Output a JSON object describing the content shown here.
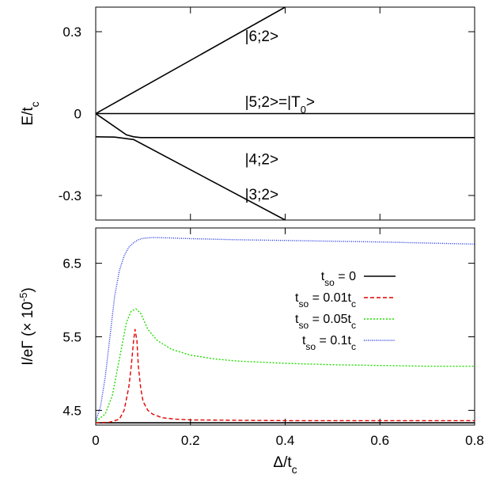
{
  "chart_data": [
    {
      "type": "line",
      "title": "",
      "xlabel": "",
      "ylabel": {
        "main": "E/t",
        "sub": "c"
      },
      "xlim": [
        0,
        0.8
      ],
      "ylim": [
        -0.39,
        0.39
      ],
      "yticks": [
        0.3,
        0,
        -0.3
      ],
      "ytick_labels": [
        "0.3",
        "0",
        "-0.3"
      ],
      "annotations": [
        {
          "text": "|6;2>",
          "x": 0.315,
          "y": 0.285
        },
        {
          "text": "|5;2>=|T",
          "sub": "0",
          "after": ">",
          "x": 0.315,
          "y": 0.045
        },
        {
          "text": "|4;2>",
          "x": 0.315,
          "y": -0.165
        },
        {
          "text": "|3;2>",
          "x": 0.315,
          "y": -0.295
        }
      ],
      "series": [
        {
          "x": [
            0,
            0.4
          ],
          "values": [
            0,
            0.39
          ]
        },
        {
          "x": [
            0,
            0.8
          ],
          "values": [
            0,
            0
          ]
        },
        {
          "x": [
            0,
            0.065,
            0.08,
            0.095,
            0.8
          ],
          "values": [
            0,
            -0.078,
            -0.085,
            -0.088,
            -0.088
          ]
        },
        {
          "x": [
            0,
            0.04,
            0.08,
            0.4
          ],
          "values": [
            -0.085,
            -0.086,
            -0.095,
            -0.39
          ]
        }
      ]
    },
    {
      "type": "line",
      "title": "",
      "xlabel": {
        "main": "Δ/t",
        "sub": "c"
      },
      "ylabel": {
        "main": "I/eΓ (× 10",
        "sup": "-5",
        "after": ")"
      },
      "xlim": [
        0,
        0.8
      ],
      "ylim": [
        4.3,
        6.98
      ],
      "xticks": [
        0,
        0.2,
        0.4,
        0.6,
        0.8
      ],
      "xtick_labels": [
        "0",
        "0.2",
        "0.4",
        "0.6",
        "0.8"
      ],
      "yticks": [
        4.5,
        5.5,
        6.5
      ],
      "ytick_labels": [
        "4.5",
        "5.5",
        "6.5"
      ],
      "legend_position": "right",
      "series": [
        {
          "name": {
            "pre": "t",
            "sub": "so",
            "post": " = 0"
          },
          "color": "#000000",
          "dash": "",
          "x": [
            0,
            0.8
          ],
          "values": [
            4.33,
            4.33
          ]
        },
        {
          "name": {
            "pre": "t",
            "sub": "so",
            "post": " = 0.01t",
            "sub2": "c"
          },
          "color": "#e00000",
          "dash": "5,3",
          "x": [
            0,
            0.03,
            0.05,
            0.06,
            0.07,
            0.075,
            0.08,
            0.083,
            0.087,
            0.09,
            0.095,
            0.1,
            0.11,
            0.12,
            0.14,
            0.17,
            0.2,
            0.3,
            0.4,
            0.6,
            0.8
          ],
          "values": [
            4.33,
            4.34,
            4.38,
            4.5,
            4.82,
            5.1,
            5.45,
            5.6,
            5.45,
            5.1,
            4.8,
            4.62,
            4.5,
            4.45,
            4.4,
            4.38,
            4.37,
            4.365,
            4.36,
            4.36,
            4.36
          ]
        },
        {
          "name": {
            "pre": "t",
            "sub": "so",
            "post": " = 0.05t",
            "sub2": "c"
          },
          "color": "#22dd00",
          "dash": "2,2",
          "x": [
            0,
            0.02,
            0.035,
            0.05,
            0.065,
            0.075,
            0.085,
            0.095,
            0.11,
            0.13,
            0.16,
            0.2,
            0.25,
            0.3,
            0.4,
            0.5,
            0.6,
            0.7,
            0.8
          ],
          "values": [
            4.35,
            4.45,
            4.7,
            5.2,
            5.7,
            5.85,
            5.88,
            5.82,
            5.6,
            5.45,
            5.33,
            5.25,
            5.2,
            5.17,
            5.14,
            5.12,
            5.11,
            5.1,
            5.1
          ],
          "point_spacing": 2.5
        },
        {
          "name": {
            "pre": "t",
            "sub": "so",
            "post": " = 0.1t",
            "sub2": "c"
          },
          "color": "#1a2ee0",
          "dash": "1,1.5",
          "x": [
            0,
            0.01,
            0.02,
            0.03,
            0.04,
            0.05,
            0.06,
            0.07,
            0.08,
            0.09,
            0.1,
            0.12,
            0.15,
            0.2,
            0.3,
            0.4,
            0.6,
            0.8
          ],
          "values": [
            4.35,
            4.55,
            4.95,
            5.5,
            6.05,
            6.4,
            6.6,
            6.72,
            6.78,
            6.82,
            6.84,
            6.85,
            6.845,
            6.835,
            6.82,
            6.81,
            6.79,
            6.76
          ],
          "point_spacing": 1.8
        }
      ]
    }
  ]
}
